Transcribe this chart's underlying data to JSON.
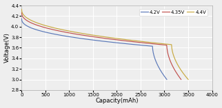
{
  "title": "",
  "xlabel": "Capacity(mAh)",
  "ylabel": "Voltage(V)",
  "xlim": [
    0,
    4000
  ],
  "ylim": [
    2.8,
    4.4
  ],
  "yticks": [
    2.8,
    3.0,
    3.2,
    3.4,
    3.6,
    3.8,
    4.0,
    4.2,
    4.4
  ],
  "xticks": [
    0,
    500,
    1000,
    1500,
    2000,
    2500,
    3000,
    3500,
    4000
  ],
  "series": [
    {
      "label": "4.2V",
      "color": "#5a78b8",
      "start_v": 4.15,
      "mid_v": 3.78,
      "flat_v": 3.63,
      "knee_cap": 2750,
      "end_cap": 3050,
      "end_v": 3.0
    },
    {
      "label": "4.35V",
      "color": "#c0504d",
      "start_v": 4.27,
      "mid_v": 3.8,
      "flat_v": 3.65,
      "knee_cap": 3050,
      "end_cap": 3350,
      "end_v": 3.0
    },
    {
      "label": "4.4V",
      "color": "#c8a940",
      "start_v": 4.33,
      "mid_v": 3.81,
      "flat_v": 3.66,
      "knee_cap": 3150,
      "end_cap": 3500,
      "end_v": 3.0
    }
  ],
  "background_color": "#eeeeee",
  "grid_color": "#ffffff",
  "legend_fontsize": 5.0,
  "axis_fontsize": 6,
  "tick_fontsize": 5
}
